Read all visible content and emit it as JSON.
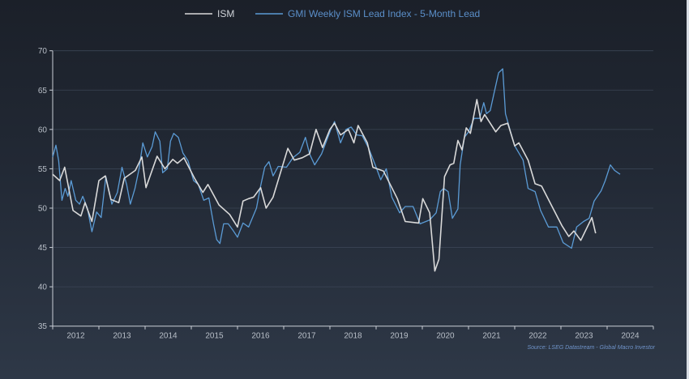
{
  "chart_data": {
    "type": "line",
    "title": "",
    "xlabel": "",
    "ylabel": "",
    "xlim": [
      2012,
      2025
    ],
    "ylim": [
      35,
      70
    ],
    "yticks": [
      35,
      40,
      45,
      50,
      55,
      60,
      65,
      70
    ],
    "xticks": [
      "2012",
      "2013",
      "2014",
      "2015",
      "2016",
      "2017",
      "2018",
      "2019",
      "2020",
      "2021",
      "2022",
      "2023",
      "2024"
    ],
    "grid": true,
    "legend_position": "top-center",
    "source": "Source: LSEG Datastream - Global Macro Investor",
    "series": [
      {
        "name": "ISM",
        "color": "#d9d9d9",
        "points": [
          [
            2012.0,
            54.3
          ],
          [
            2012.15,
            53.5
          ],
          [
            2012.26,
            55.2
          ],
          [
            2012.44,
            49.7
          ],
          [
            2012.61,
            49.0
          ],
          [
            2012.7,
            50.7
          ],
          [
            2012.85,
            48.3
          ],
          [
            2013.0,
            53.5
          ],
          [
            2013.14,
            54.1
          ],
          [
            2013.26,
            51.1
          ],
          [
            2013.43,
            50.7
          ],
          [
            2013.55,
            53.8
          ],
          [
            2013.79,
            54.8
          ],
          [
            2013.93,
            56.5
          ],
          [
            2014.02,
            52.6
          ],
          [
            2014.26,
            56.6
          ],
          [
            2014.43,
            55.0
          ],
          [
            2014.6,
            56.2
          ],
          [
            2014.7,
            55.7
          ],
          [
            2014.84,
            56.4
          ],
          [
            2015.07,
            53.8
          ],
          [
            2015.25,
            52.0
          ],
          [
            2015.36,
            53.0
          ],
          [
            2015.6,
            50.4
          ],
          [
            2015.83,
            49.2
          ],
          [
            2016.0,
            47.6
          ],
          [
            2016.12,
            50.9
          ],
          [
            2016.24,
            51.2
          ],
          [
            2016.35,
            51.4
          ],
          [
            2016.5,
            52.6
          ],
          [
            2016.62,
            50.0
          ],
          [
            2016.77,
            51.4
          ],
          [
            2017.09,
            57.6
          ],
          [
            2017.23,
            56.1
          ],
          [
            2017.4,
            56.4
          ],
          [
            2017.56,
            56.9
          ],
          [
            2017.7,
            60.0
          ],
          [
            2017.84,
            57.7
          ],
          [
            2018.0,
            60.0
          ],
          [
            2018.1,
            60.8
          ],
          [
            2018.23,
            59.3
          ],
          [
            2018.4,
            60.0
          ],
          [
            2018.52,
            58.3
          ],
          [
            2018.61,
            60.5
          ],
          [
            2018.81,
            58.3
          ],
          [
            2018.93,
            55.2
          ],
          [
            2019.16,
            54.7
          ],
          [
            2019.46,
            51.2
          ],
          [
            2019.63,
            48.3
          ],
          [
            2019.92,
            48.1
          ],
          [
            2020.01,
            51.2
          ],
          [
            2020.16,
            49.4
          ],
          [
            2020.27,
            42.0
          ],
          [
            2020.36,
            43.5
          ],
          [
            2020.48,
            54.0
          ],
          [
            2020.6,
            55.5
          ],
          [
            2020.68,
            55.7
          ],
          [
            2020.77,
            58.6
          ],
          [
            2020.86,
            57.4
          ],
          [
            2020.95,
            60.2
          ],
          [
            2021.04,
            59.5
          ],
          [
            2021.18,
            63.8
          ],
          [
            2021.27,
            61.0
          ],
          [
            2021.35,
            61.9
          ],
          [
            2021.59,
            59.7
          ],
          [
            2021.7,
            60.5
          ],
          [
            2021.85,
            60.8
          ],
          [
            2022.0,
            57.9
          ],
          [
            2022.09,
            58.3
          ],
          [
            2022.29,
            56.1
          ],
          [
            2022.44,
            53.1
          ],
          [
            2022.58,
            52.8
          ],
          [
            2023.02,
            47.8
          ],
          [
            2023.17,
            46.4
          ],
          [
            2023.28,
            47.1
          ],
          [
            2023.43,
            45.9
          ],
          [
            2023.67,
            48.8
          ],
          [
            2023.75,
            46.8
          ]
        ]
      },
      {
        "name": "GMI Weekly ISM Lead Index - 5-Month Lead",
        "color": "#5b9bd5",
        "points": [
          [
            2012.0,
            56.5
          ],
          [
            2012.07,
            58.0
          ],
          [
            2012.13,
            56.0
          ],
          [
            2012.2,
            51.0
          ],
          [
            2012.27,
            52.5
          ],
          [
            2012.33,
            51.5
          ],
          [
            2012.4,
            53.5
          ],
          [
            2012.5,
            51.0
          ],
          [
            2012.58,
            50.5
          ],
          [
            2012.65,
            51.5
          ],
          [
            2012.75,
            50.0
          ],
          [
            2012.85,
            47.0
          ],
          [
            2012.95,
            49.5
          ],
          [
            2013.05,
            48.8
          ],
          [
            2013.15,
            54.0
          ],
          [
            2013.28,
            50.5
          ],
          [
            2013.4,
            52.0
          ],
          [
            2013.5,
            55.2
          ],
          [
            2013.6,
            53.0
          ],
          [
            2013.68,
            50.5
          ],
          [
            2013.78,
            52.5
          ],
          [
            2013.87,
            55.0
          ],
          [
            2013.95,
            58.3
          ],
          [
            2014.05,
            56.5
          ],
          [
            2014.15,
            57.8
          ],
          [
            2014.22,
            59.7
          ],
          [
            2014.32,
            58.5
          ],
          [
            2014.38,
            54.5
          ],
          [
            2014.48,
            55.0
          ],
          [
            2014.55,
            58.5
          ],
          [
            2014.62,
            59.5
          ],
          [
            2014.72,
            59.0
          ],
          [
            2014.82,
            57.0
          ],
          [
            2014.93,
            56.0
          ],
          [
            2015.05,
            53.5
          ],
          [
            2015.15,
            53.0
          ],
          [
            2015.27,
            51.0
          ],
          [
            2015.38,
            51.3
          ],
          [
            2015.48,
            48.0
          ],
          [
            2015.55,
            46.0
          ],
          [
            2015.62,
            45.5
          ],
          [
            2015.7,
            48.0
          ],
          [
            2015.8,
            48.0
          ],
          [
            2015.9,
            47.2
          ],
          [
            2016.0,
            46.3
          ],
          [
            2016.12,
            48.1
          ],
          [
            2016.24,
            47.6
          ],
          [
            2016.41,
            50.0
          ],
          [
            2016.5,
            52.8
          ],
          [
            2016.59,
            55.2
          ],
          [
            2016.68,
            55.9
          ],
          [
            2016.77,
            54.1
          ],
          [
            2016.88,
            55.3
          ],
          [
            2017.06,
            55.2
          ],
          [
            2017.2,
            56.4
          ],
          [
            2017.35,
            57.1
          ],
          [
            2017.47,
            59.0
          ],
          [
            2017.56,
            56.9
          ],
          [
            2017.67,
            55.5
          ],
          [
            2017.82,
            56.9
          ],
          [
            2017.93,
            58.6
          ],
          [
            2018.02,
            60.0
          ],
          [
            2018.1,
            61.0
          ],
          [
            2018.23,
            58.3
          ],
          [
            2018.35,
            60.0
          ],
          [
            2018.46,
            60.3
          ],
          [
            2018.58,
            59.3
          ],
          [
            2018.7,
            59.2
          ],
          [
            2018.84,
            57.6
          ],
          [
            2018.98,
            55.5
          ],
          [
            2019.1,
            53.6
          ],
          [
            2019.22,
            55.0
          ],
          [
            2019.34,
            51.4
          ],
          [
            2019.51,
            49.4
          ],
          [
            2019.63,
            50.2
          ],
          [
            2019.8,
            50.2
          ],
          [
            2019.95,
            48.0
          ],
          [
            2020.16,
            48.5
          ],
          [
            2020.3,
            49.4
          ],
          [
            2020.39,
            52.1
          ],
          [
            2020.46,
            52.5
          ],
          [
            2020.56,
            52.1
          ],
          [
            2020.65,
            48.7
          ],
          [
            2020.77,
            49.9
          ],
          [
            2020.82,
            55.5
          ],
          [
            2020.91,
            59.0
          ],
          [
            2021.0,
            59.7
          ],
          [
            2021.12,
            61.4
          ],
          [
            2021.24,
            61.4
          ],
          [
            2021.33,
            63.4
          ],
          [
            2021.39,
            62.0
          ],
          [
            2021.47,
            62.4
          ],
          [
            2021.56,
            64.8
          ],
          [
            2021.65,
            67.2
          ],
          [
            2021.74,
            67.7
          ],
          [
            2021.8,
            62.0
          ],
          [
            2021.91,
            59.7
          ],
          [
            2022.0,
            57.9
          ],
          [
            2022.18,
            56.1
          ],
          [
            2022.29,
            52.5
          ],
          [
            2022.44,
            52.1
          ],
          [
            2022.56,
            49.7
          ],
          [
            2022.73,
            47.6
          ],
          [
            2022.91,
            47.6
          ],
          [
            2023.05,
            45.6
          ],
          [
            2023.23,
            44.9
          ],
          [
            2023.34,
            47.6
          ],
          [
            2023.49,
            48.3
          ],
          [
            2023.61,
            48.7
          ],
          [
            2023.72,
            50.9
          ],
          [
            2023.87,
            52.2
          ],
          [
            2023.96,
            53.5
          ],
          [
            2024.07,
            55.5
          ],
          [
            2024.16,
            54.8
          ],
          [
            2024.28,
            54.3
          ]
        ]
      }
    ]
  }
}
